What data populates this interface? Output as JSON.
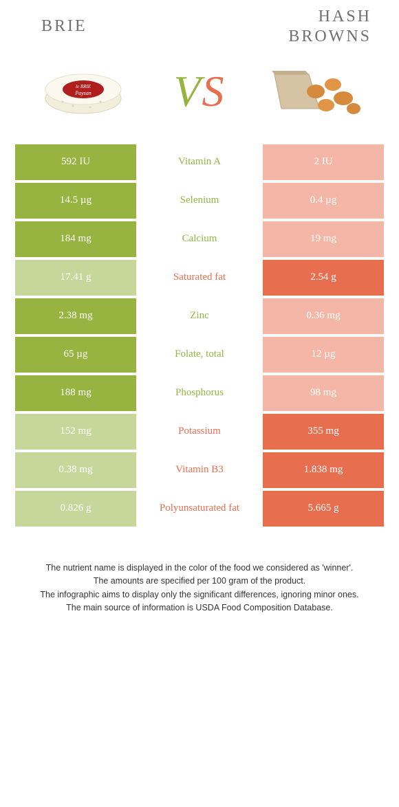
{
  "colors": {
    "green": "#97b441",
    "orange": "#e76e4e",
    "green_dim": "#c7d69a",
    "orange_dim": "#f4b7a7",
    "title_grey": "#717171",
    "text_dark": "#333333",
    "white": "#ffffff"
  },
  "food_left": {
    "title": "BRIE"
  },
  "food_right": {
    "title_line1": "HASH",
    "title_line2": "BROWNS"
  },
  "vs": {
    "v": "V",
    "s": "S"
  },
  "rows": [
    {
      "nutrient": "Vitamin A",
      "left": "592 IU",
      "right": "2 IU",
      "winner": "left"
    },
    {
      "nutrient": "Selenium",
      "left": "14.5 µg",
      "right": "0.4 µg",
      "winner": "left"
    },
    {
      "nutrient": "Calcium",
      "left": "184 mg",
      "right": "19 mg",
      "winner": "left"
    },
    {
      "nutrient": "Saturated fat",
      "left": "17.41 g",
      "right": "2.54 g",
      "winner": "right"
    },
    {
      "nutrient": "Zinc",
      "left": "2.38 mg",
      "right": "0.36 mg",
      "winner": "left"
    },
    {
      "nutrient": "Folate, total",
      "left": "65 µg",
      "right": "12 µg",
      "winner": "left"
    },
    {
      "nutrient": "Phosphorus",
      "left": "188 mg",
      "right": "98 mg",
      "winner": "left"
    },
    {
      "nutrient": "Potassium",
      "left": "152 mg",
      "right": "355 mg",
      "winner": "right"
    },
    {
      "nutrient": "Vitamin B3",
      "left": "0.38 mg",
      "right": "1.838 mg",
      "winner": "right"
    },
    {
      "nutrient": "Polyunsaturated fat",
      "left": "0.826 g",
      "right": "5.665 g",
      "winner": "right"
    }
  ],
  "footer": {
    "l1": "The nutrient name is displayed in the color of the food we considered as 'winner'.",
    "l2": "The amounts are specified per 100 gram of the product.",
    "l3": "The infographic aims to display only the significant differences, ignoring minor ones.",
    "l4": "The main source of information is USDA Food Composition Database."
  }
}
